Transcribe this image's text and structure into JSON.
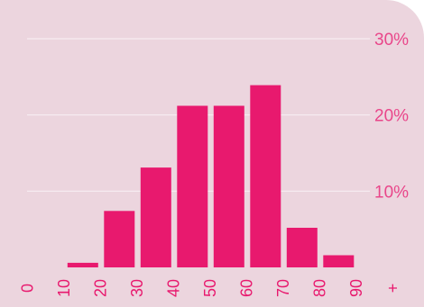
{
  "chart_data": {
    "type": "bar",
    "categories": [
      "0–10",
      "10–20",
      "20–30",
      "30–40",
      "40–50",
      "50–60",
      "60–70",
      "70–80",
      "80–90",
      "90+"
    ],
    "x_tick_labels": [
      "0",
      "10",
      "20",
      "30",
      "40",
      "50",
      "60",
      "70",
      "80",
      "90",
      "+"
    ],
    "values": [
      0.0,
      0.6,
      7.4,
      13.1,
      21.2,
      21.2,
      23.9,
      5.2,
      1.6,
      0.0
    ],
    "y_unit": "%",
    "ylim": [
      0,
      30
    ],
    "y_ticks": [
      {
        "value": 10,
        "label": "10%"
      },
      {
        "value": 20,
        "label": "20%"
      },
      {
        "value": 30,
        "label": "30%"
      }
    ],
    "grid": true,
    "y_axis_position": "right",
    "title": "",
    "xlabel": "",
    "ylabel": ""
  },
  "colors": {
    "background": "#ecd5de",
    "bar": "#e8196e",
    "gridline": "#f7eef2",
    "tick_label": "#e9468a"
  }
}
